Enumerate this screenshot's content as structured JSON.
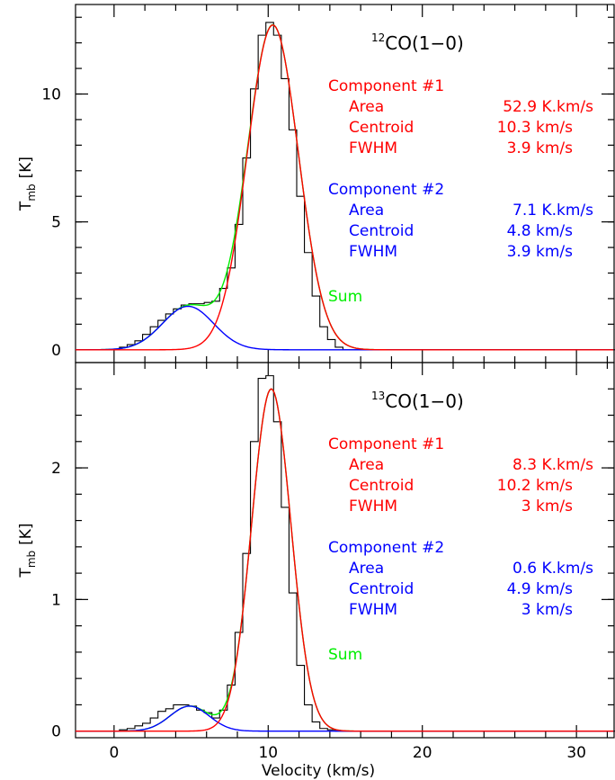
{
  "chart_data": [
    {
      "type": "line",
      "panel": "top",
      "molecule": {
        "isotope": "12",
        "name": "CO(1−0)"
      },
      "ylabel": {
        "main": "T",
        "sub": "mb",
        "unit": "[K]"
      },
      "xlabel": "",
      "xlim": [
        -2.5,
        32.5
      ],
      "ylim": [
        -0.5,
        13.5
      ],
      "yticks": [
        0,
        5,
        10
      ],
      "xticks": [
        0,
        10,
        20,
        30
      ],
      "show_xtick_labels": false,
      "components": [
        {
          "name": "Component #1",
          "color": "#ff0000",
          "area_label": "Area",
          "area": "52.9 K.km/s",
          "centroid_label": "Centroid",
          "centroid": "10.3 km/s",
          "fwhm_label": "FWHM",
          "fwhm": "3.9 km/s",
          "amp": 12.7,
          "center": 10.3,
          "width": 3.9
        },
        {
          "name": "Component #2",
          "color": "#0000ff",
          "area_label": "Area",
          "area": "7.1 K.km/s",
          "centroid_label": "Centroid",
          "centroid": "4.8 km/s",
          "fwhm_label": "FWHM",
          "fwhm": "3.9 km/s",
          "amp": 1.7,
          "center": 4.8,
          "width": 3.9
        }
      ],
      "sum_label": "Sum",
      "sum_color": "#00ee00",
      "spectrum": {
        "x": [
          0.6,
          1.1,
          1.6,
          2.1,
          2.6,
          3.1,
          3.6,
          4.1,
          4.6,
          5.1,
          5.6,
          6.1,
          6.6,
          7.1,
          7.6,
          8.1,
          8.6,
          9.1,
          9.6,
          10.1,
          10.6,
          11.1,
          11.6,
          12.1,
          12.6,
          13.1,
          13.6,
          14.1,
          14.6,
          15.1
        ],
        "y": [
          0.1,
          0.2,
          0.35,
          0.6,
          0.9,
          1.15,
          1.4,
          1.6,
          1.75,
          1.8,
          1.8,
          1.85,
          1.9,
          2.4,
          3.2,
          4.9,
          7.5,
          10.2,
          12.3,
          12.8,
          12.3,
          10.6,
          8.6,
          6.0,
          3.8,
          2.1,
          0.9,
          0.4,
          0.1,
          0.0
        ]
      }
    },
    {
      "type": "line",
      "panel": "bottom",
      "molecule": {
        "isotope": "13",
        "name": "CO(1−0)"
      },
      "ylabel": {
        "main": "T",
        "sub": "mb",
        "unit": "[K]"
      },
      "xlabel": "Velocity (km/s)",
      "xlim": [
        -2.5,
        32.5
      ],
      "ylim": [
        -0.05,
        2.8
      ],
      "yticks": [
        0,
        1,
        2
      ],
      "xticks": [
        0,
        10,
        20,
        30
      ],
      "show_xtick_labels": true,
      "components": [
        {
          "name": "Component #1",
          "color": "#ff0000",
          "area_label": "Area",
          "area": "8.3 K.km/s",
          "centroid_label": "Centroid",
          "centroid": "10.2 km/s",
          "fwhm_label": "FWHM",
          "fwhm": "3 km/s",
          "amp": 2.6,
          "center": 10.2,
          "width": 3.0
        },
        {
          "name": "Component #2",
          "color": "#0000ff",
          "area_label": "Area",
          "area": "0.6 K.km/s",
          "centroid_label": "Centroid",
          "centroid": "4.9 km/s",
          "fwhm_label": "FWHM",
          "fwhm": "3 km/s",
          "amp": 0.19,
          "center": 4.9,
          "width": 3.0
        }
      ],
      "sum_label": "Sum",
      "sum_color": "#00ee00",
      "spectrum": {
        "x": [
          0.6,
          1.1,
          1.6,
          2.1,
          2.6,
          3.1,
          3.6,
          4.1,
          4.6,
          5.1,
          5.6,
          6.1,
          6.6,
          7.1,
          7.6,
          8.1,
          8.6,
          9.1,
          9.6,
          10.1,
          10.6,
          11.1,
          11.6,
          12.1,
          12.6,
          13.1,
          13.6,
          14.1,
          14.6,
          15.1
        ],
        "y": [
          0.01,
          0.02,
          0.04,
          0.06,
          0.1,
          0.15,
          0.17,
          0.2,
          0.2,
          0.19,
          0.16,
          0.14,
          0.1,
          0.16,
          0.35,
          0.75,
          1.35,
          2.2,
          2.68,
          2.7,
          2.35,
          1.7,
          1.05,
          0.5,
          0.2,
          0.07,
          0.02,
          0.01,
          0.0,
          0.0
        ]
      }
    }
  ]
}
